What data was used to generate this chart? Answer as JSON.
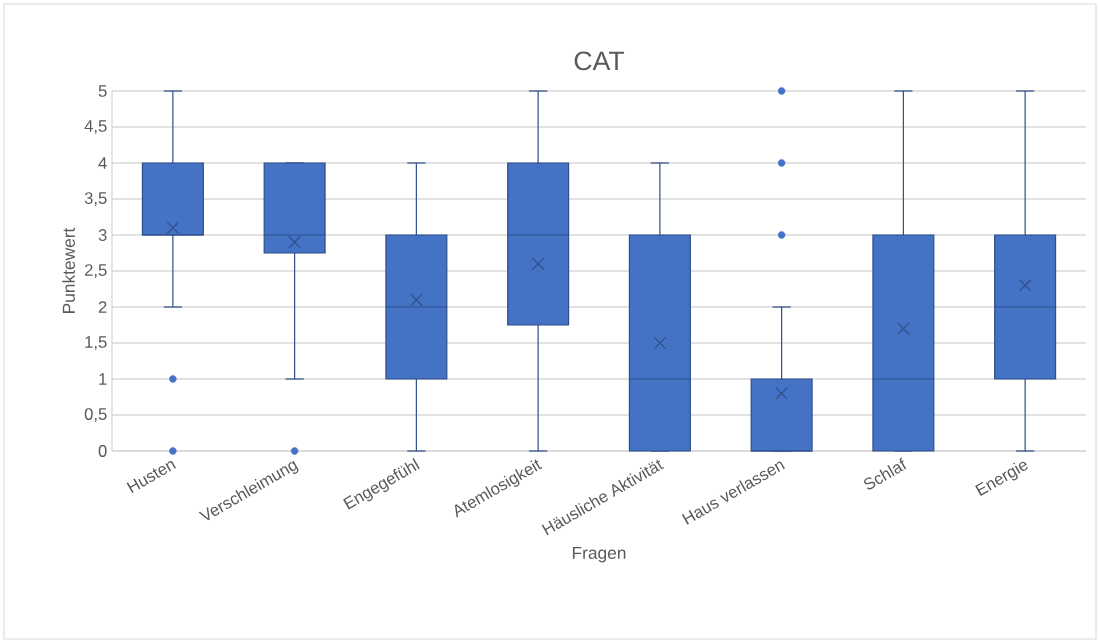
{
  "chart_data": {
    "type": "box",
    "title": "CAT",
    "xlabel": "Fragen",
    "ylabel": "Punktewert",
    "categories": [
      "Husten",
      "Verschleimung",
      "Engegefühl",
      "Atemlosigkeit",
      "Häusliche Aktivität",
      "Haus verlassen",
      "Schlaf",
      "Energie"
    ],
    "color": "#4472c4",
    "boxes": [
      {
        "low": 2,
        "q1": 3,
        "median": 3,
        "q3": 4,
        "high": 5,
        "mean": 3.1,
        "outliers": [
          1,
          0
        ]
      },
      {
        "low": 1,
        "q1": 2.75,
        "median": 3,
        "q3": 4,
        "high": 4,
        "mean": 2.9,
        "outliers": [
          0
        ]
      },
      {
        "low": 0,
        "q1": 1,
        "median": 2,
        "q3": 3,
        "high": 4,
        "mean": 2.1
      },
      {
        "low": 0,
        "q1": 1.75,
        "median": 3,
        "q3": 4,
        "high": 5,
        "mean": 2.6
      },
      {
        "low": 0,
        "q1": 0,
        "median": 1,
        "q3": 3,
        "high": 4,
        "mean": 1.5
      },
      {
        "low": 0,
        "q1": 0,
        "median": 0,
        "q3": 1,
        "high": 2,
        "mean": 0.8,
        "outliers": [
          3,
          4,
          5
        ]
      },
      {
        "low": 0,
        "q1": 0,
        "median": 1,
        "q3": 3,
        "high": 5,
        "mean": 1.7
      },
      {
        "low": 0,
        "q1": 1,
        "median": 2,
        "q3": 3,
        "high": 5,
        "mean": 2.3
      }
    ],
    "ylim": [
      0,
      5
    ],
    "yticks": [
      0,
      {
        "value": 0.5,
        "label": "0,5"
      },
      1,
      {
        "value": 1.5,
        "label": "1,5"
      },
      2,
      {
        "value": 2.5,
        "label": "2,5"
      },
      3,
      {
        "value": 3.5,
        "label": "3,5"
      },
      4,
      {
        "value": 4.5,
        "label": "4,5"
      },
      5
    ],
    "grid": "y"
  }
}
